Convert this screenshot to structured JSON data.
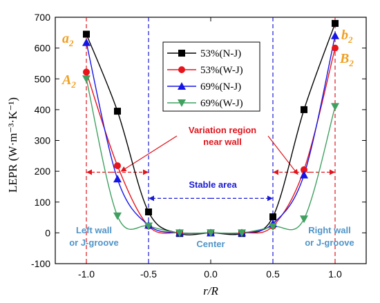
{
  "chart_data": {
    "type": "line",
    "title": "",
    "xlabel": "r/R",
    "ylabel": "LEPR (W·m⁻³·K⁻¹)",
    "xlim": [
      -1.25,
      1.25
    ],
    "ylim": [
      -100,
      700
    ],
    "x_ticks": [
      -1.0,
      -0.5,
      0.0,
      0.5,
      1.0
    ],
    "x_tick_labels": [
      "-1.0",
      "-0.5",
      "0.0",
      "0.5",
      "1.0"
    ],
    "y_ticks": [
      -100,
      0,
      100,
      200,
      300,
      400,
      500,
      600,
      700
    ],
    "y_tick_labels": [
      "-100",
      "0",
      "100",
      "200",
      "300",
      "400",
      "500",
      "600",
      "700"
    ],
    "grid": false,
    "legend_position": "top-center",
    "x": [
      -1.0,
      -0.75,
      -0.5,
      -0.25,
      0.0,
      0.25,
      0.5,
      0.75,
      1.0
    ],
    "series": [
      {
        "name": "53%(N-J)",
        "color": "#000000",
        "marker": "square",
        "values": [
          645,
          395,
          68,
          -2,
          0,
          -2,
          52,
          400,
          680
        ]
      },
      {
        "name": "53%(W-J)",
        "color": "#e8141c",
        "marker": "circle",
        "values": [
          522,
          218,
          22,
          0,
          0,
          0,
          22,
          205,
          600
        ]
      },
      {
        "name": "69%(N-J)",
        "color": "#1515e8",
        "marker": "triangle-up",
        "values": [
          618,
          175,
          25,
          0,
          0,
          0,
          30,
          188,
          640
        ]
      },
      {
        "name": "69%(W-J)",
        "color": "#3fa060",
        "marker": "triangle-down",
        "values": [
          500,
          55,
          22,
          0,
          0,
          0,
          20,
          45,
          410
        ]
      }
    ],
    "annotations": {
      "a2": "a",
      "a2_sub": "2",
      "b2": "b",
      "b2_sub": "2",
      "A2": "A",
      "A2_sub": "2",
      "B2": "B",
      "B2_sub": "2",
      "variation_line1": "Variation region",
      "variation_line2": "near wall",
      "stable": "Stable area",
      "left_wall_line1": "Left wall",
      "left_wall_line2": "or J-groove",
      "center": "Center",
      "right_wall_line1": "Right wall",
      "right_wall_line2": "or J-groove"
    }
  }
}
